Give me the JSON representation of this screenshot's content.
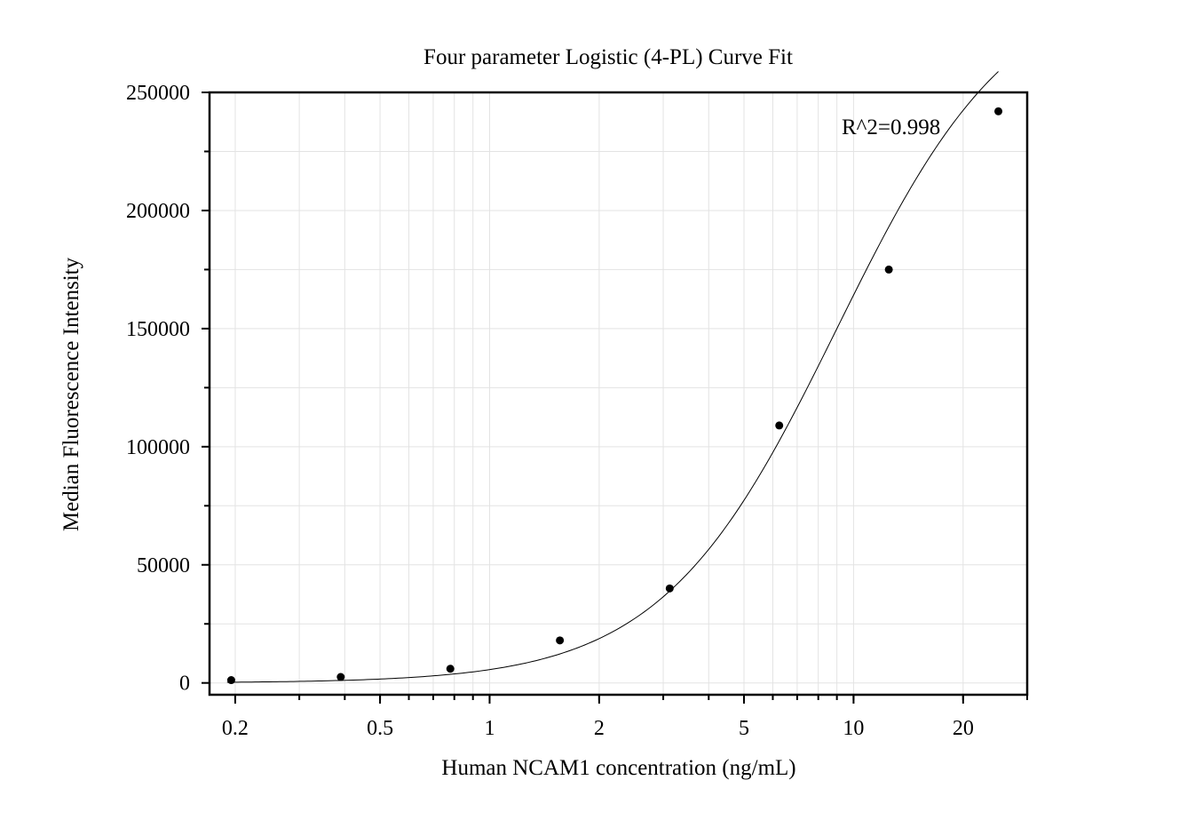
{
  "chart_data": {
    "type": "scatter",
    "title": "Four parameter Logistic (4-PL) Curve Fit",
    "xlabel": "Human NCAM1 concentration (ng/mL)",
    "ylabel": "Median Fluorescence Intensity",
    "x_scale": "log",
    "xlim": [
      0.17,
      30
    ],
    "ylim": [
      -5000,
      250000
    ],
    "x_ticks": [
      0.2,
      0.5,
      1,
      2,
      5,
      10,
      20
    ],
    "x_tick_labels": [
      "0.2",
      "0.5",
      "1",
      "2",
      "5",
      "10",
      "20"
    ],
    "y_ticks": [
      0,
      50000,
      100000,
      150000,
      200000,
      250000
    ],
    "y_tick_labels": [
      "0",
      "50000",
      "100000",
      "150000",
      "200000",
      "250000"
    ],
    "grid": true,
    "annotation": "R^2=0.998",
    "series": [
      {
        "marker": "circle",
        "x": [
          0.195,
          0.39,
          0.78,
          1.56,
          3.125,
          6.25,
          12.5,
          25
        ],
        "y": [
          1200,
          2500,
          6000,
          18000,
          40000,
          109000,
          175000,
          242000
        ]
      }
    ],
    "fit_curve": {
      "model": "4PL",
      "x_range": [
        0.19,
        25
      ],
      "params": {
        "bottom": 0,
        "top": 300000,
        "ec50": 9.0,
        "hill": 1.8
      }
    },
    "colors": {
      "points": "#000000",
      "curve": "#000000",
      "grid": "#e3e3e3"
    }
  }
}
